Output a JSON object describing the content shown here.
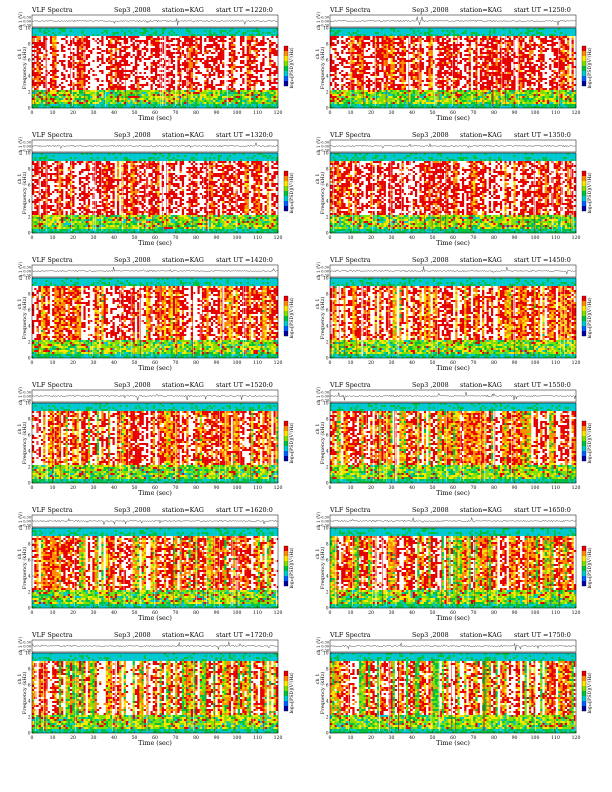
{
  "figure": {
    "panel_title": "VLF Spectra",
    "date": "Sep3 ,2008",
    "station": "station=KAG",
    "start_label": "start UT =",
    "waveform_ylabel": "ch 1 (V)",
    "waveform_ticks": [
      "0.30",
      "0.00",
      "-0.30"
    ],
    "freq_ylabel": "Frequency (kHz)",
    "channel_label": "ch 1",
    "colorbar_label": "log₁₀[PSD](V²/Hz)"
  },
  "chart_data": [
    {
      "type": "heatmap",
      "start_ut": "1220:0",
      "xlabel": "Time (sec)",
      "ylabel": "Frequency (kHz)",
      "x_ticks": [
        0,
        10,
        20,
        30,
        40,
        50,
        60,
        70,
        80,
        90,
        100,
        110,
        120
      ],
      "y_ticks": [
        0,
        2,
        4,
        6,
        8,
        10
      ],
      "xlim": [
        0,
        120
      ],
      "ylim": [
        0,
        10
      ]
    },
    {
      "type": "heatmap",
      "start_ut": "1250:0",
      "xlabel": "Time (sec)",
      "ylabel": "Frequency (kHz)",
      "x_ticks": [
        0,
        10,
        20,
        30,
        40,
        50,
        60,
        70,
        80,
        90,
        100,
        110,
        120
      ],
      "y_ticks": [
        0,
        2,
        4,
        6,
        8,
        10
      ],
      "xlim": [
        0,
        120
      ],
      "ylim": [
        0,
        10
      ]
    },
    {
      "type": "heatmap",
      "start_ut": "1320:0",
      "xlabel": "Time (sec)",
      "ylabel": "Frequency (kHz)",
      "x_ticks": [
        0,
        10,
        20,
        30,
        40,
        50,
        60,
        70,
        80,
        90,
        100,
        110,
        120
      ],
      "y_ticks": [
        0,
        2,
        4,
        6,
        8,
        10
      ],
      "xlim": [
        0,
        120
      ],
      "ylim": [
        0,
        10
      ]
    },
    {
      "type": "heatmap",
      "start_ut": "1350:0",
      "xlabel": "Time (sec)",
      "ylabel": "Frequency (kHz)",
      "x_ticks": [
        0,
        10,
        20,
        30,
        40,
        50,
        60,
        70,
        80,
        90,
        100,
        110,
        120
      ],
      "y_ticks": [
        0,
        2,
        4,
        6,
        8,
        10
      ],
      "xlim": [
        0,
        120
      ],
      "ylim": [
        0,
        10
      ]
    },
    {
      "type": "heatmap",
      "start_ut": "1420:0",
      "xlabel": "Time (sec)",
      "ylabel": "Frequency (kHz)",
      "x_ticks": [
        0,
        10,
        20,
        30,
        40,
        50,
        60,
        70,
        80,
        90,
        100,
        110,
        120
      ],
      "y_ticks": [
        0,
        2,
        4,
        6,
        8,
        10
      ],
      "xlim": [
        0,
        120
      ],
      "ylim": [
        0,
        10
      ]
    },
    {
      "type": "heatmap",
      "start_ut": "1450:0",
      "xlabel": "Time (sec)",
      "ylabel": "Frequency (kHz)",
      "x_ticks": [
        0,
        10,
        20,
        30,
        40,
        50,
        60,
        70,
        80,
        90,
        100,
        110,
        120
      ],
      "y_ticks": [
        0,
        2,
        4,
        6,
        8,
        10
      ],
      "xlim": [
        0,
        120
      ],
      "ylim": [
        0,
        10
      ]
    },
    {
      "type": "heatmap",
      "start_ut": "1520:0",
      "xlabel": "Time (sec)",
      "ylabel": "Frequency (kHz)",
      "x_ticks": [
        0,
        10,
        20,
        30,
        40,
        50,
        60,
        70,
        80,
        90,
        100,
        110,
        120
      ],
      "y_ticks": [
        0,
        2,
        4,
        6,
        8,
        10
      ],
      "xlim": [
        0,
        120
      ],
      "ylim": [
        0,
        10
      ]
    },
    {
      "type": "heatmap",
      "start_ut": "1550:0",
      "xlabel": "Time (sec)",
      "ylabel": "Frequency (kHz)",
      "x_ticks": [
        0,
        10,
        20,
        30,
        40,
        50,
        60,
        70,
        80,
        90,
        100,
        110,
        120
      ],
      "y_ticks": [
        0,
        2,
        4,
        6,
        8,
        10
      ],
      "xlim": [
        0,
        120
      ],
      "ylim": [
        0,
        10
      ]
    },
    {
      "type": "heatmap",
      "start_ut": "1620:0",
      "xlabel": "Time (sec)",
      "ylabel": "Frequency (kHz)",
      "x_ticks": [
        0,
        10,
        20,
        30,
        40,
        50,
        60,
        70,
        80,
        90,
        100,
        110,
        120
      ],
      "y_ticks": [
        0,
        2,
        4,
        6,
        8,
        10
      ],
      "xlim": [
        0,
        120
      ],
      "ylim": [
        0,
        10
      ]
    },
    {
      "type": "heatmap",
      "start_ut": "1650:0",
      "xlabel": "Time (sec)",
      "ylabel": "Frequency (kHz)",
      "x_ticks": [
        0,
        10,
        20,
        30,
        40,
        50,
        60,
        70,
        80,
        90,
        100,
        110,
        120
      ],
      "y_ticks": [
        0,
        2,
        4,
        6,
        8,
        10
      ],
      "xlim": [
        0,
        120
      ],
      "ylim": [
        0,
        10
      ]
    },
    {
      "type": "heatmap",
      "start_ut": "1720:0",
      "xlabel": "Time (sec)",
      "ylabel": "Frequency (kHz)",
      "x_ticks": [
        0,
        10,
        20,
        30,
        40,
        50,
        60,
        70,
        80,
        90,
        100,
        110,
        120
      ],
      "y_ticks": [
        0,
        2,
        4,
        6,
        8,
        10
      ],
      "xlim": [
        0,
        120
      ],
      "ylim": [
        0,
        10
      ]
    },
    {
      "type": "heatmap",
      "start_ut": "1750:0",
      "xlabel": "Time (sec)",
      "ylabel": "Frequency (kHz)",
      "x_ticks": [
        0,
        10,
        20,
        30,
        40,
        50,
        60,
        70,
        80,
        90,
        100,
        110,
        120
      ],
      "y_ticks": [
        0,
        2,
        4,
        6,
        8,
        10
      ],
      "xlim": [
        0,
        120
      ],
      "ylim": [
        0,
        10
      ]
    }
  ],
  "colors": {
    "scale": [
      "#ffffff",
      "#e60000",
      "#ff8c00",
      "#ffe600",
      "#7fe000",
      "#00c040",
      "#00c8d0",
      "#0060ff",
      "#0000a0"
    ]
  }
}
